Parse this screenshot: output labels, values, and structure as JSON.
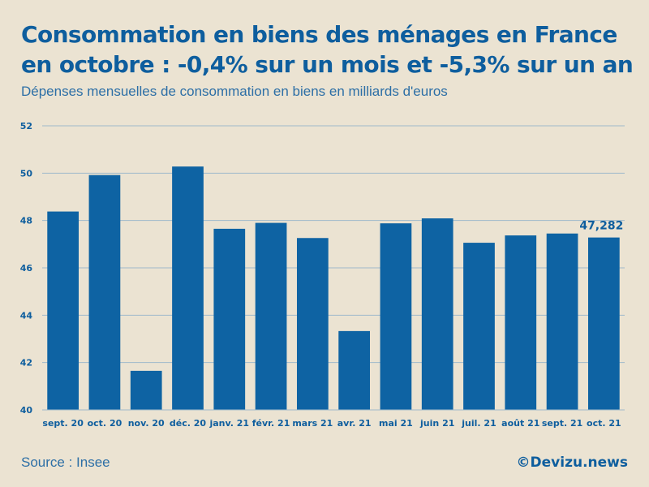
{
  "chart_data": {
    "type": "bar",
    "title": "Consommation en biens des ménages en France en octobre : -0,4% sur un mois et -5,3% sur un an",
    "subtitle": "Dépenses mensuelles de consommation en biens en milliards d'euros",
    "categories": [
      "sept. 20",
      "oct. 20",
      "nov. 20",
      "déc. 20",
      "janv. 21",
      "févr. 21",
      "mars 21",
      "avr. 21",
      "mai 21",
      "juin 21",
      "juil. 21",
      "août 21",
      "sept. 21",
      "oct. 21"
    ],
    "values": [
      48.38,
      49.92,
      41.65,
      50.28,
      47.65,
      47.9,
      47.26,
      43.33,
      47.88,
      48.09,
      47.06,
      47.37,
      47.45,
      47.282
    ],
    "ylim": [
      40,
      52
    ],
    "yticks": [
      40,
      42,
      44,
      46,
      48,
      50,
      52
    ],
    "grid": true,
    "xlabel": "",
    "ylabel": "",
    "annotation": {
      "category": "oct. 21",
      "label": "47,282"
    }
  },
  "footer": {
    "source": "Source : Insee",
    "credit": "©Devizu.news"
  },
  "colors": {
    "background": "#ebe3d2",
    "bar": "#0e63a3",
    "grid": "#9fb8cb",
    "text": "#0e5e9e"
  }
}
